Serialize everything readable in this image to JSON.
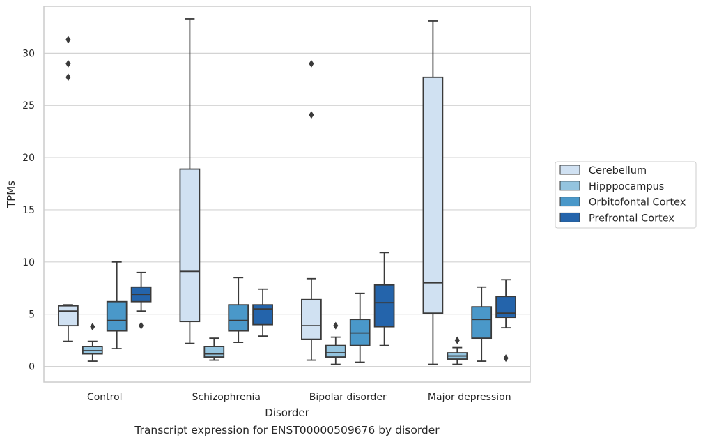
{
  "chart_data": {
    "type": "boxplot",
    "caption": "Transcript expression for ENST00000509676 by disorder",
    "xlabel": "Disorder",
    "ylabel": "TPMs",
    "ylim": [
      -1.5,
      34.5
    ],
    "yticks": [
      0,
      5,
      10,
      15,
      20,
      25,
      30
    ],
    "grid": "horizontal",
    "legend_position": "outside-right",
    "categories": [
      "Control",
      "Schizophrenia",
      "Bipolar disorder",
      "Major depression"
    ],
    "series": [
      {
        "name": "Cerebellum",
        "color": "#d0e1f2",
        "boxes": [
          {
            "whislo": 2.4,
            "q1": 3.9,
            "med": 5.3,
            "q3": 5.8,
            "whishi": 5.9,
            "fliers": [
              27.7,
              29.0,
              31.3
            ]
          },
          {
            "whislo": 2.2,
            "q1": 4.3,
            "med": 9.1,
            "q3": 18.9,
            "whishi": 33.3,
            "fliers": []
          },
          {
            "whislo": 0.6,
            "q1": 2.6,
            "med": 3.9,
            "q3": 6.4,
            "whishi": 8.4,
            "fliers": [
              24.1,
              29.0
            ]
          },
          {
            "whislo": 0.2,
            "q1": 5.1,
            "med": 8.0,
            "q3": 27.7,
            "whishi": 33.1,
            "fliers": []
          }
        ]
      },
      {
        "name": "Hipppocampus",
        "color": "#94c4df",
        "boxes": [
          {
            "whislo": 0.5,
            "q1": 1.2,
            "med": 1.5,
            "q3": 1.9,
            "whishi": 2.4,
            "fliers": [
              3.8
            ]
          },
          {
            "whislo": 0.6,
            "q1": 0.9,
            "med": 1.2,
            "q3": 1.9,
            "whishi": 2.7,
            "fliers": []
          },
          {
            "whislo": 0.2,
            "q1": 0.9,
            "med": 1.3,
            "q3": 2.0,
            "whishi": 2.8,
            "fliers": [
              3.9
            ]
          },
          {
            "whislo": 0.2,
            "q1": 0.7,
            "med": 1.0,
            "q3": 1.3,
            "whishi": 1.8,
            "fliers": [
              2.5
            ]
          }
        ]
      },
      {
        "name": "Orbitofontal Cortex",
        "color": "#4a98c9",
        "boxes": [
          {
            "whislo": 1.7,
            "q1": 3.4,
            "med": 4.4,
            "q3": 6.2,
            "whishi": 10.0,
            "fliers": []
          },
          {
            "whislo": 2.3,
            "q1": 3.4,
            "med": 4.4,
            "q3": 5.9,
            "whishi": 8.5,
            "fliers": []
          },
          {
            "whislo": 0.4,
            "q1": 2.0,
            "med": 3.2,
            "q3": 4.5,
            "whishi": 7.0,
            "fliers": []
          },
          {
            "whislo": 0.5,
            "q1": 2.7,
            "med": 4.5,
            "q3": 5.7,
            "whishi": 7.6,
            "fliers": []
          }
        ]
      },
      {
        "name": "Prefrontal Cortex",
        "color": "#2464ab",
        "boxes": [
          {
            "whislo": 5.3,
            "q1": 6.2,
            "med": 6.9,
            "q3": 7.6,
            "whishi": 9.0,
            "fliers": [
              3.9
            ]
          },
          {
            "whislo": 2.9,
            "q1": 4.0,
            "med": 5.5,
            "q3": 5.9,
            "whishi": 7.4,
            "fliers": []
          },
          {
            "whislo": 2.0,
            "q1": 3.8,
            "med": 6.1,
            "q3": 7.8,
            "whishi": 10.9,
            "fliers": []
          },
          {
            "whislo": 3.7,
            "q1": 4.7,
            "med": 5.1,
            "q3": 6.7,
            "whishi": 8.3,
            "fliers": [
              0.8
            ]
          }
        ]
      }
    ]
  }
}
